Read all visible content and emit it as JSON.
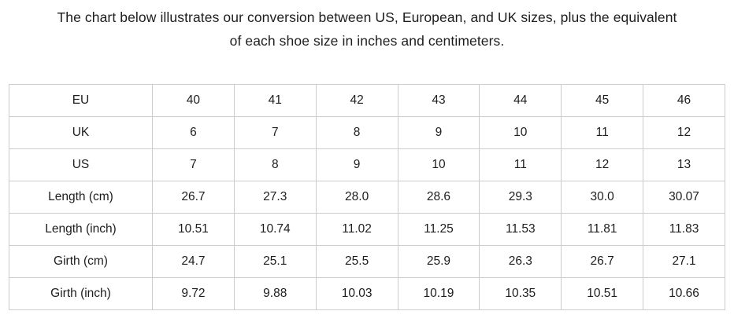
{
  "heading": {
    "line1": "The chart below illustrates our conversion between US, European, and UK sizes, plus the equivalent",
    "line2": "of each shoe size in inches and centimeters."
  },
  "chart_data": {
    "type": "table",
    "rows": [
      {
        "label": "EU",
        "values": [
          "40",
          "41",
          "42",
          "43",
          "44",
          "45",
          "46"
        ]
      },
      {
        "label": "UK",
        "values": [
          "6",
          "7",
          "8",
          "9",
          "10",
          "11",
          "12"
        ]
      },
      {
        "label": "US",
        "values": [
          "7",
          "8",
          "9",
          "10",
          "11",
          "12",
          "13"
        ]
      },
      {
        "label": "Length (cm)",
        "values": [
          "26.7",
          "27.3",
          "28.0",
          "28.6",
          "29.3",
          "30.0",
          "30.07"
        ]
      },
      {
        "label": "Length (inch)",
        "values": [
          "10.51",
          "10.74",
          "11.02",
          "11.25",
          "11.53",
          "11.81",
          "11.83"
        ]
      },
      {
        "label": "Girth (cm)",
        "values": [
          "24.7",
          "25.1",
          "25.5",
          "25.9",
          "26.3",
          "26.7",
          "27.1"
        ]
      },
      {
        "label": "Girth (inch)",
        "values": [
          "9.72",
          "9.88",
          "10.03",
          "10.19",
          "10.35",
          "10.51",
          "10.66"
        ]
      }
    ]
  },
  "colors": {
    "text": "#1d1d1d",
    "border": "#cccccc",
    "background": "#ffffff"
  }
}
